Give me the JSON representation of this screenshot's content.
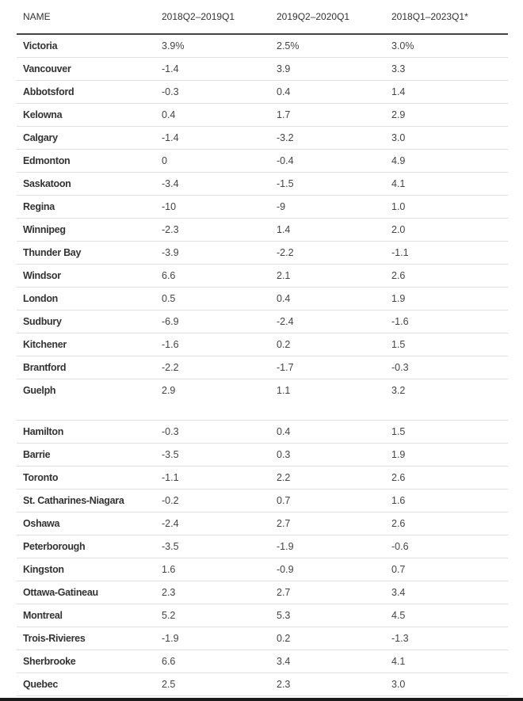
{
  "table": {
    "headers": [
      "NAME",
      "2018Q2–2019Q1",
      "2019Q2–2020Q1",
      "2018Q1–2023Q1*"
    ],
    "rows": [
      [
        "Victoria",
        "3.9%",
        "2.5%",
        "3.0%"
      ],
      [
        "Vancouver",
        "-1.4",
        "3.9",
        "3.3"
      ],
      [
        "Abbotsford",
        "-0.3",
        "0.4",
        "1.4"
      ],
      [
        "Kelowna",
        "0.4",
        "1.7",
        "2.9"
      ],
      [
        "Calgary",
        "-1.4",
        "-3.2",
        "3.0"
      ],
      [
        "Edmonton",
        "0",
        "-0.4",
        "4.9"
      ],
      [
        "Saskatoon",
        "-3.4",
        "-1.5",
        "4.1"
      ],
      [
        "Regina",
        "-10",
        "-9",
        "1.0"
      ],
      [
        "Winnipeg",
        "-2.3",
        "1.4",
        "2.0"
      ],
      [
        "Thunder Bay",
        "-3.9",
        "-2.2",
        "-1.1"
      ],
      [
        "Windsor",
        "6.6",
        "2.1",
        "2.6"
      ],
      [
        "London",
        "0.5",
        "0.4",
        "1.9"
      ],
      [
        "Sudbury",
        "-6.9",
        "-2.4",
        "-1.6"
      ],
      [
        "Kitchener",
        "-1.6",
        "0.2",
        "1.5"
      ],
      [
        "Brantford",
        "-2.2",
        "-1.7",
        "-0.3"
      ],
      [
        "Guelph",
        "2.9",
        "1.1",
        "3.2"
      ],
      [
        "Hamilton",
        "-0.3",
        "0.4",
        "1.5"
      ],
      [
        "Barrie",
        "-3.5",
        "0.3",
        "1.9"
      ],
      [
        "Toronto",
        "-1.1",
        "2.2",
        "2.6"
      ],
      [
        "St. Catharines-Niagara",
        "-0.2",
        "0.7",
        "1.6"
      ],
      [
        "Oshawa",
        "-2.4",
        "2.7",
        "2.6"
      ],
      [
        "Peterborough",
        "-3.5",
        "-1.9",
        "-0.6"
      ],
      [
        "Kingston",
        "1.6",
        "-0.9",
        "0.7"
      ],
      [
        "Ottawa-Gatineau",
        "2.3",
        "2.7",
        "3.4"
      ],
      [
        "Montreal",
        "5.2",
        "5.3",
        "4.5"
      ],
      [
        "Trois-Rivieres",
        "-1.9",
        "0.2",
        "-1.3"
      ],
      [
        "Sherbrooke",
        "6.6",
        "3.4",
        "4.1"
      ],
      [
        "Quebec",
        "2.5",
        "2.3",
        "3.0"
      ]
    ]
  }
}
